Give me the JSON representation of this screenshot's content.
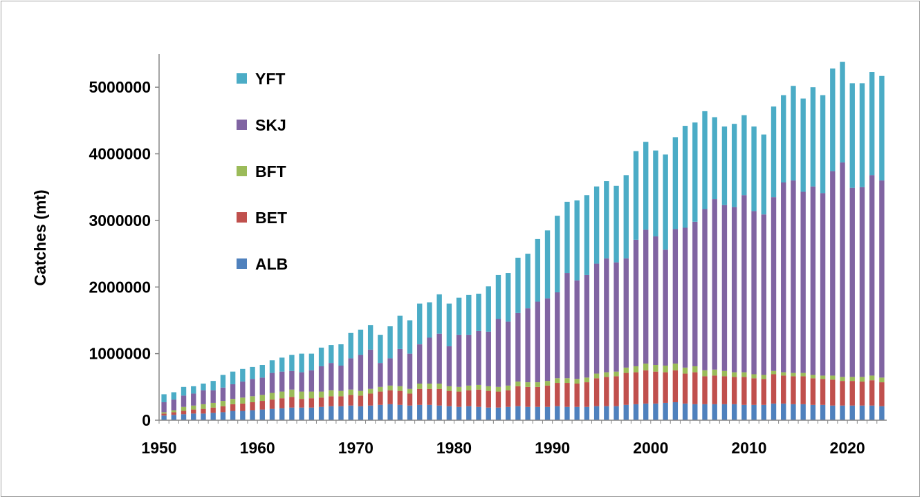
{
  "chart_data": {
    "type": "bar",
    "stacked": true,
    "ylabel": "Catches (mt)",
    "xlabel": "",
    "ylim": [
      0,
      5500000
    ],
    "xlim": [
      1950,
      2024
    ],
    "yticks": [
      0,
      1000000,
      2000000,
      3000000,
      4000000,
      5000000
    ],
    "ytick_labels": [
      "0",
      "1000000",
      "2000000",
      "3000000",
      "4000000",
      "5000000"
    ],
    "xticks": [
      1950,
      1960,
      1970,
      1980,
      1990,
      2000,
      2010,
      2020
    ],
    "xtick_labels": [
      "1950",
      "1960",
      "1970",
      "1980",
      "1990",
      "2000",
      "2010",
      "2020"
    ],
    "legend_position": "top-left",
    "legend_order": [
      "YFT",
      "SKJ",
      "BFT",
      "BET",
      "ALB"
    ],
    "x": [
      1950,
      1951,
      1952,
      1953,
      1954,
      1955,
      1956,
      1957,
      1958,
      1959,
      1960,
      1961,
      1962,
      1963,
      1964,
      1965,
      1966,
      1967,
      1968,
      1969,
      1970,
      1971,
      1972,
      1973,
      1974,
      1975,
      1976,
      1977,
      1978,
      1979,
      1980,
      1981,
      1982,
      1983,
      1984,
      1985,
      1986,
      1987,
      1988,
      1989,
      1990,
      1991,
      1992,
      1993,
      1994,
      1995,
      1996,
      1997,
      1998,
      1999,
      2000,
      2001,
      2002,
      2003,
      2004,
      2005,
      2006,
      2007,
      2008,
      2009,
      2010,
      2011,
      2012,
      2013,
      2014,
      2015,
      2016,
      2017,
      2018,
      2019,
      2020,
      2021,
      2022,
      2023
    ],
    "series": [
      {
        "name": "ALB",
        "color": "#4f81bd",
        "values": [
          70000,
          80000,
          90000,
          100000,
          100000,
          110000,
          120000,
          140000,
          140000,
          150000,
          160000,
          170000,
          180000,
          190000,
          190000,
          190000,
          200000,
          210000,
          210000,
          220000,
          210000,
          220000,
          230000,
          240000,
          230000,
          220000,
          230000,
          230000,
          220000,
          210000,
          200000,
          210000,
          200000,
          190000,
          190000,
          200000,
          210000,
          200000,
          200000,
          200000,
          210000,
          200000,
          200000,
          200000,
          210000,
          210000,
          210000,
          230000,
          240000,
          250000,
          250000,
          260000,
          270000,
          250000,
          240000,
          240000,
          240000,
          240000,
          240000,
          230000,
          230000,
          230000,
          250000,
          250000,
          240000,
          240000,
          230000,
          230000,
          220000,
          220000,
          220000,
          220000,
          220000,
          210000
        ]
      },
      {
        "name": "BET",
        "color": "#c0504d",
        "values": [
          30000,
          40000,
          50000,
          60000,
          70000,
          80000,
          90000,
          100000,
          110000,
          120000,
          130000,
          140000,
          150000,
          160000,
          130000,
          140000,
          140000,
          150000,
          150000,
          160000,
          160000,
          180000,
          200000,
          210000,
          210000,
          180000,
          240000,
          240000,
          250000,
          230000,
          230000,
          240000,
          260000,
          250000,
          240000,
          250000,
          300000,
          300000,
          300000,
          320000,
          350000,
          360000,
          350000,
          370000,
          420000,
          440000,
          450000,
          480000,
          480000,
          500000,
          480000,
          460000,
          480000,
          450000,
          480000,
          420000,
          430000,
          420000,
          410000,
          420000,
          400000,
          390000,
          440000,
          420000,
          420000,
          420000,
          400000,
          390000,
          390000,
          370000,
          370000,
          360000,
          380000,
          360000
        ]
      },
      {
        "name": "BFT",
        "color": "#9bbb59",
        "values": [
          20000,
          30000,
          60000,
          60000,
          70000,
          70000,
          80000,
          80000,
          90000,
          90000,
          90000,
          100000,
          100000,
          110000,
          110000,
          100000,
          90000,
          90000,
          80000,
          80000,
          70000,
          70000,
          70000,
          70000,
          70000,
          70000,
          80000,
          80000,
          80000,
          70000,
          70000,
          70000,
          70000,
          70000,
          70000,
          70000,
          70000,
          70000,
          70000,
          70000,
          70000,
          70000,
          70000,
          70000,
          70000,
          70000,
          70000,
          80000,
          90000,
          100000,
          100000,
          100000,
          100000,
          90000,
          90000,
          90000,
          90000,
          80000,
          70000,
          70000,
          60000,
          60000,
          50000,
          50000,
          50000,
          50000,
          50000,
          50000,
          60000,
          60000,
          60000,
          70000,
          70000,
          70000
        ]
      },
      {
        "name": "SKJ",
        "color": "#8064a2",
        "values": [
          150000,
          160000,
          170000,
          180000,
          210000,
          190000,
          200000,
          220000,
          240000,
          260000,
          260000,
          300000,
          300000,
          280000,
          290000,
          320000,
          380000,
          410000,
          380000,
          470000,
          540000,
          590000,
          360000,
          410000,
          560000,
          530000,
          590000,
          690000,
          750000,
          600000,
          780000,
          760000,
          810000,
          820000,
          1020000,
          960000,
          1030000,
          1110000,
          1210000,
          1240000,
          1290000,
          1580000,
          1480000,
          1540000,
          1650000,
          1710000,
          1640000,
          1640000,
          1900000,
          2010000,
          1930000,
          1740000,
          2020000,
          2100000,
          2170000,
          2420000,
          2560000,
          2490000,
          2480000,
          2660000,
          2450000,
          2410000,
          2610000,
          2850000,
          2890000,
          2720000,
          2830000,
          2740000,
          3070000,
          3220000,
          2840000,
          2850000,
          3010000,
          2960000
        ]
      },
      {
        "name": "YFT",
        "color": "#4bacc6",
        "values": [
          120000,
          110000,
          130000,
          110000,
          100000,
          140000,
          190000,
          190000,
          190000,
          180000,
          190000,
          190000,
          210000,
          240000,
          280000,
          250000,
          280000,
          270000,
          320000,
          380000,
          380000,
          370000,
          420000,
          480000,
          500000,
          500000,
          610000,
          530000,
          590000,
          640000,
          560000,
          600000,
          560000,
          680000,
          660000,
          730000,
          830000,
          820000,
          940000,
          1020000,
          1150000,
          1070000,
          1200000,
          1200000,
          1160000,
          1160000,
          1150000,
          1250000,
          1330000,
          1320000,
          1290000,
          1430000,
          1380000,
          1530000,
          1490000,
          1470000,
          1230000,
          1180000,
          1250000,
          1200000,
          1270000,
          1200000,
          1360000,
          1310000,
          1420000,
          1400000,
          1490000,
          1470000,
          1540000,
          1510000,
          1570000,
          1560000,
          1550000,
          1570000
        ]
      }
    ]
  }
}
